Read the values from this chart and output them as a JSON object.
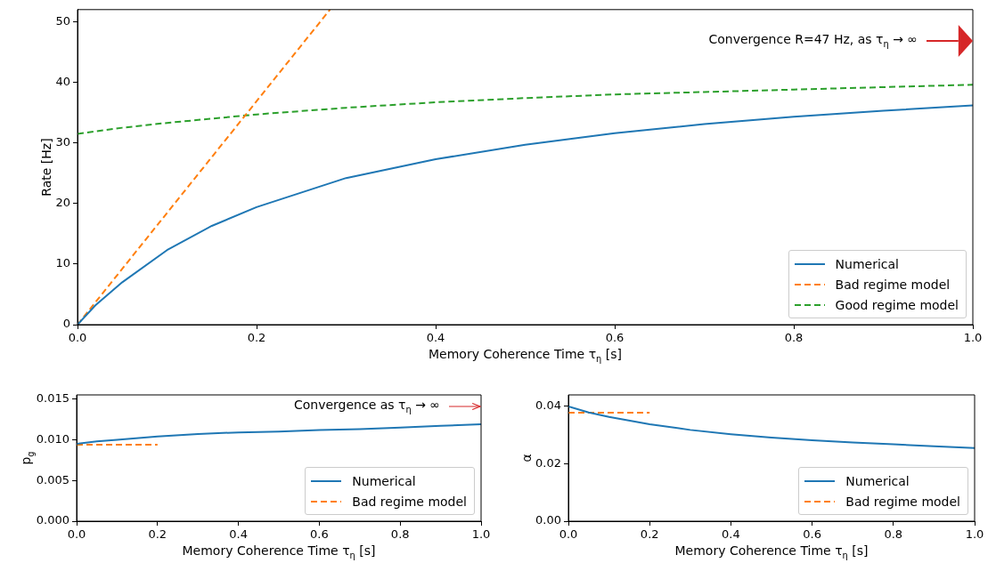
{
  "chart_data": [
    {
      "type": "line",
      "xlabel": "Memory Coherence Time τ$_{η}$ [s]",
      "ylabel": "Rate [Hz]",
      "xlim": [
        0,
        1
      ],
      "ylim": [
        0,
        52
      ],
      "xticks": [
        {
          "value": 0,
          "label": "0.0"
        },
        {
          "value": 0.2,
          "label": "0.2"
        },
        {
          "value": 0.4,
          "label": "0.4"
        },
        {
          "value": 0.6,
          "label": "0.6"
        },
        {
          "value": 0.8,
          "label": "0.8"
        },
        {
          "value": 1,
          "label": "1.0"
        }
      ],
      "yticks": [
        0,
        10,
        20,
        30,
        40,
        50
      ],
      "legend": "bottom right",
      "annotations": [
        "Convergence R=47 Hz, as τ$_{η}$ → ∞"
      ],
      "series": [
        {
          "name": "Numerical",
          "color": "#1f77b4",
          "line_style": "solid",
          "x": [
            0,
            0.02,
            0.05,
            0.1,
            0.15,
            0.2,
            0.3,
            0.4,
            0.5,
            0.6,
            0.7,
            0.8,
            0.9,
            1
          ],
          "values": [
            0,
            3.2,
            7.0,
            12.3,
            16.3,
            19.4,
            24.2,
            27.3,
            29.7,
            31.6,
            33.1,
            34.3,
            35.3,
            36.2
          ]
        },
        {
          "name": "Bad regime model",
          "color": "#ff7f0e",
          "line_style": "dashed",
          "x": [
            0,
            0.282
          ],
          "values": [
            0,
            52
          ]
        },
        {
          "name": "Good regime model",
          "color": "#2ca02c",
          "line_style": "dashed",
          "x": [
            0,
            0.05,
            0.1,
            0.2,
            0.3,
            0.4,
            0.5,
            0.6,
            0.7,
            0.8,
            0.9,
            1
          ],
          "values": [
            31.5,
            32.5,
            33.3,
            34.7,
            35.8,
            36.7,
            37.4,
            38.0,
            38.4,
            38.8,
            39.2,
            39.6
          ]
        }
      ]
    },
    {
      "type": "line",
      "xlabel": "Memory Coherence Time τ$_{η}$ [s]",
      "ylabel": "p$_{g}$",
      "xlim": [
        0,
        1
      ],
      "ylim": [
        0,
        0.0155
      ],
      "xticks": [
        {
          "value": 0,
          "label": "0.0"
        },
        {
          "value": 0.2,
          "label": "0.2"
        },
        {
          "value": 0.4,
          "label": "0.4"
        },
        {
          "value": 0.6,
          "label": "0.6"
        },
        {
          "value": 0.8,
          "label": "0.8"
        },
        {
          "value": 1,
          "label": "1.0"
        }
      ],
      "yticks": [
        {
          "value": 0,
          "label": "0.000"
        },
        {
          "value": 0.005,
          "label": "0.005"
        },
        {
          "value": 0.01,
          "label": "0.010"
        },
        {
          "value": 0.015,
          "label": "0.015"
        }
      ],
      "legend": "bottom right",
      "annotations": [
        "Convergence as τ$_{η}$ → ∞"
      ],
      "series": [
        {
          "name": "Numerical",
          "color": "#1f77b4",
          "line_style": "solid",
          "x": [
            0,
            0.05,
            0.1,
            0.2,
            0.3,
            0.4,
            0.5,
            0.6,
            0.7,
            0.8,
            0.9,
            1
          ],
          "values": [
            0.0095,
            0.0098,
            0.01,
            0.0104,
            0.0107,
            0.0109,
            0.011,
            0.0112,
            0.0113,
            0.0115,
            0.0117,
            0.0119
          ]
        },
        {
          "name": "Bad regime model",
          "color": "#ff7f0e",
          "line_style": "dashed",
          "x": [
            0,
            0.2
          ],
          "values": [
            0.0094,
            0.0094
          ]
        }
      ]
    },
    {
      "type": "line",
      "xlabel": "Memory Coherence Time τ$_{η}$ [s]",
      "ylabel": "α",
      "xlim": [
        0,
        1
      ],
      "ylim": [
        0,
        0.044
      ],
      "xticks": [
        {
          "value": 0,
          "label": "0.0"
        },
        {
          "value": 0.2,
          "label": "0.2"
        },
        {
          "value": 0.4,
          "label": "0.4"
        },
        {
          "value": 0.6,
          "label": "0.6"
        },
        {
          "value": 0.8,
          "label": "0.8"
        },
        {
          "value": 1,
          "label": "1.0"
        }
      ],
      "yticks": [
        {
          "value": 0,
          "label": "0.00"
        },
        {
          "value": 0.02,
          "label": "0.02"
        },
        {
          "value": 0.04,
          "label": "0.04"
        }
      ],
      "legend": "bottom right",
      "series": [
        {
          "name": "Numerical",
          "color": "#1f77b4",
          "line_style": "solid",
          "x": [
            0,
            0.05,
            0.1,
            0.2,
            0.3,
            0.4,
            0.5,
            0.6,
            0.7,
            0.8,
            0.9,
            1
          ],
          "values": [
            0.04,
            0.0379,
            0.0363,
            0.0338,
            0.0318,
            0.0303,
            0.0291,
            0.0282,
            0.0274,
            0.0268,
            0.0261,
            0.0255
          ]
        },
        {
          "name": "Bad regime model",
          "color": "#ff7f0e",
          "line_style": "dashed",
          "x": [
            0,
            0.2
          ],
          "values": [
            0.0378,
            0.0378
          ]
        }
      ]
    }
  ]
}
